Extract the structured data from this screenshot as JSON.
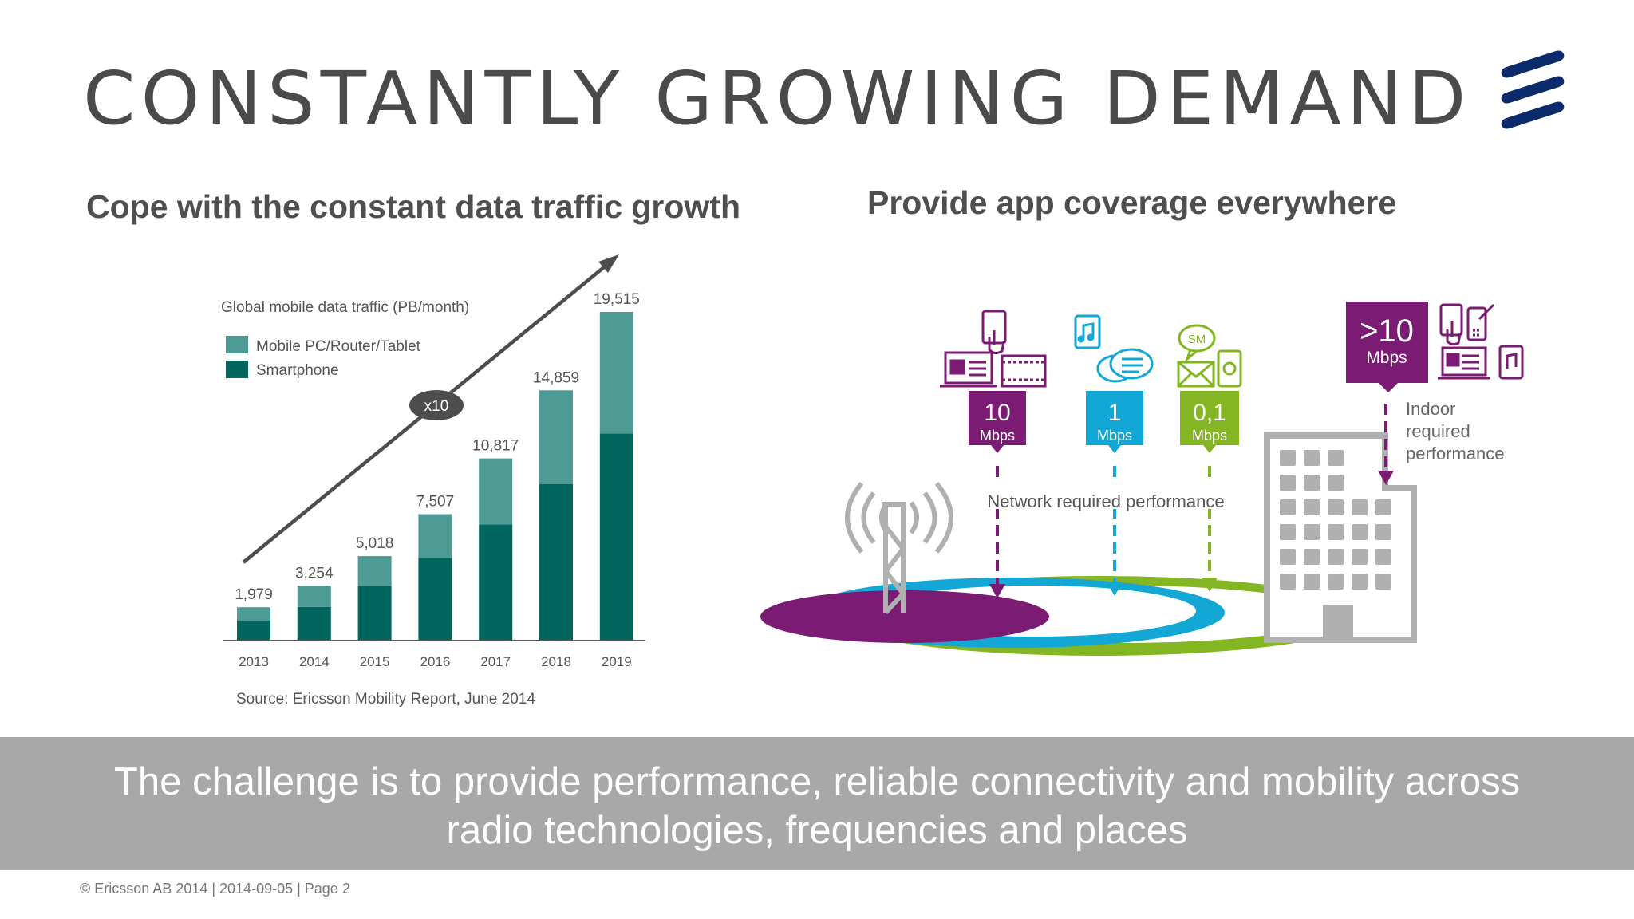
{
  "slide": {
    "title": "CONSTANTLY GROWING DEMAND",
    "footer": "© Ericsson AB 2014  |  2014-09-05  |  Page 2"
  },
  "left": {
    "heading": "Cope with the constant data traffic growth"
  },
  "right": {
    "heading": "Provide app coverage everywhere",
    "network_label": "Network required performance",
    "indoor_label": [
      "Indoor",
      "required",
      "performance"
    ],
    "speeds": [
      {
        "value": "10",
        "unit": "Mbps",
        "color": "#7b1b74"
      },
      {
        "value": "1",
        "unit": "Mbps",
        "color": "#13a7d6"
      },
      {
        "value": "0,1",
        "unit": "Mbps",
        "color": "#84b522"
      }
    ],
    "indoor_speed": {
      "value": ">10",
      "unit": "Mbps",
      "color": "#7b1b74"
    },
    "sms_label": "SM"
  },
  "banner": {
    "line1": "The challenge is to provide performance, reliable connectivity and mobility across",
    "line2": "radio technologies, frequencies and places"
  },
  "chart_data": {
    "type": "bar",
    "stacked": true,
    "title": "Global mobile data traffic (PB/month)",
    "categories": [
      "2013",
      "2014",
      "2015",
      "2016",
      "2017",
      "2018",
      "2019"
    ],
    "totals": [
      1979,
      3254,
      5018,
      7507,
      10817,
      14859,
      19515
    ],
    "total_labels": [
      "1,979",
      "3,254",
      "5,018",
      "7,507",
      "10,817",
      "14,859",
      "19,515"
    ],
    "series": [
      {
        "name": "Smartphone",
        "color": "#00665e",
        "values": [
          1180,
          2000,
          3250,
          4900,
          6900,
          9300,
          12300
        ]
      },
      {
        "name": "Mobile PC/Router/Tablet",
        "color": "#4e9a94",
        "values": [
          799,
          1254,
          1768,
          2607,
          3917,
          5559,
          7215
        ]
      }
    ],
    "ylim": [
      0,
      19515
    ],
    "trend_label": "x10",
    "source": "Source: Ericsson Mobility Report, June 2014"
  }
}
